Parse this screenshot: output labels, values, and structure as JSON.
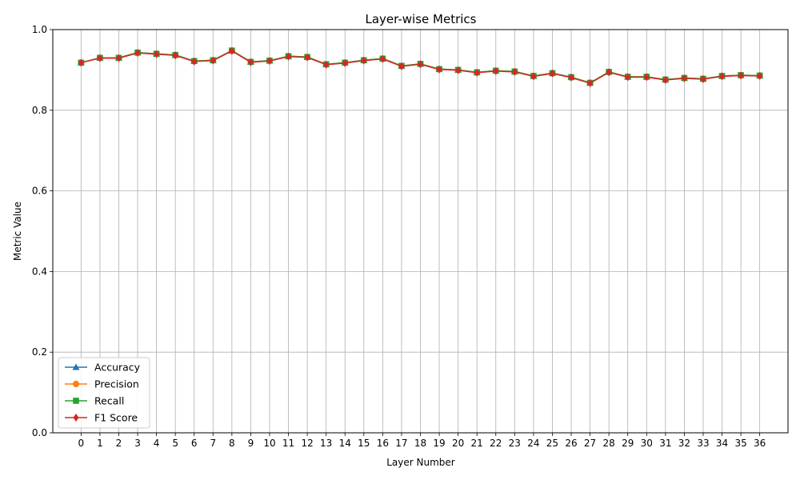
{
  "chart_data": {
    "type": "line",
    "title": "Layer-wise Metrics",
    "xlabel": "Layer Number",
    "ylabel": "Metric Value",
    "x": [
      0,
      1,
      2,
      3,
      4,
      5,
      6,
      7,
      8,
      9,
      10,
      11,
      12,
      13,
      14,
      15,
      16,
      17,
      18,
      19,
      20,
      21,
      22,
      23,
      24,
      25,
      26,
      27,
      28,
      29,
      30,
      31,
      32,
      33,
      34,
      35,
      36
    ],
    "ylim": [
      0,
      1.0
    ],
    "yticks": [
      "0.0",
      "0.2",
      "0.4",
      "0.6",
      "0.8",
      "1.0"
    ],
    "grid": true,
    "legend_position": "lower-left",
    "series": [
      {
        "name": "Accuracy",
        "color": "#1f77b4",
        "marker": "triangle",
        "values": [
          0.918,
          0.93,
          0.93,
          0.943,
          0.94,
          0.937,
          0.922,
          0.924,
          0.948,
          0.92,
          0.923,
          0.934,
          0.932,
          0.914,
          0.918,
          0.924,
          0.928,
          0.91,
          0.915,
          0.902,
          0.9,
          0.894,
          0.898,
          0.896,
          0.885,
          0.892,
          0.882,
          0.868,
          0.895,
          0.883,
          0.883,
          0.876,
          0.88,
          0.878,
          0.885,
          0.887,
          0.886
        ]
      },
      {
        "name": "Precision",
        "color": "#ff7f0e",
        "marker": "circle",
        "values": [
          0.918,
          0.93,
          0.93,
          0.943,
          0.94,
          0.937,
          0.922,
          0.924,
          0.948,
          0.92,
          0.923,
          0.934,
          0.932,
          0.914,
          0.918,
          0.924,
          0.928,
          0.91,
          0.915,
          0.902,
          0.9,
          0.894,
          0.898,
          0.896,
          0.885,
          0.892,
          0.882,
          0.868,
          0.895,
          0.883,
          0.883,
          0.876,
          0.88,
          0.878,
          0.885,
          0.887,
          0.886
        ]
      },
      {
        "name": "Recall",
        "color": "#2ca02c",
        "marker": "square",
        "values": [
          0.918,
          0.93,
          0.93,
          0.943,
          0.94,
          0.937,
          0.922,
          0.924,
          0.948,
          0.92,
          0.923,
          0.934,
          0.932,
          0.914,
          0.918,
          0.924,
          0.928,
          0.91,
          0.915,
          0.902,
          0.9,
          0.894,
          0.898,
          0.896,
          0.885,
          0.892,
          0.882,
          0.868,
          0.895,
          0.883,
          0.883,
          0.876,
          0.88,
          0.878,
          0.885,
          0.887,
          0.886
        ]
      },
      {
        "name": "F1 Score",
        "color": "#d62728",
        "marker": "diamond",
        "values": [
          0.918,
          0.929,
          0.929,
          0.942,
          0.939,
          0.936,
          0.921,
          0.923,
          0.947,
          0.919,
          0.922,
          0.933,
          0.931,
          0.913,
          0.917,
          0.923,
          0.927,
          0.909,
          0.914,
          0.901,
          0.899,
          0.893,
          0.897,
          0.895,
          0.884,
          0.891,
          0.881,
          0.867,
          0.894,
          0.882,
          0.882,
          0.875,
          0.879,
          0.877,
          0.884,
          0.886,
          0.885
        ]
      }
    ]
  }
}
